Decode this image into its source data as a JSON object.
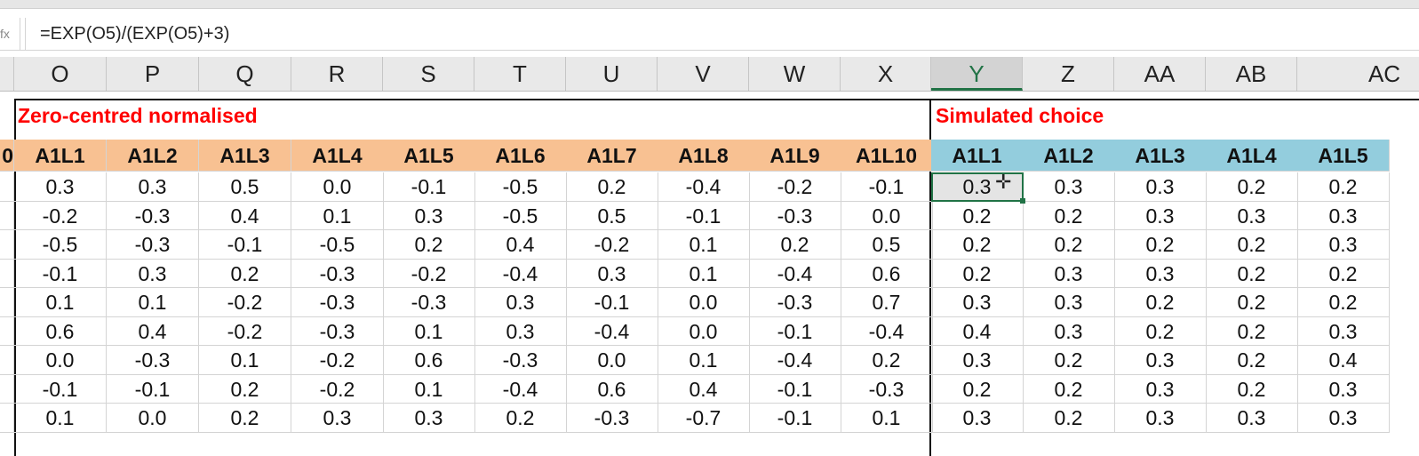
{
  "formula_bar": {
    "name_box_fragment": "fx",
    "formula": "=EXP(O5)/(EXP(O5)+3)"
  },
  "column_headers": [
    "O",
    "P",
    "Q",
    "R",
    "S",
    "T",
    "U",
    "V",
    "W",
    "X",
    "Y",
    "Z",
    "AA",
    "AB",
    "AC"
  ],
  "selected_column": "Y",
  "sections": {
    "normalised_title": "Zero-centred normalised",
    "choice_title": "Simulated choice"
  },
  "row_header_partial": "0",
  "normalised_headers": [
    "A1L1",
    "A1L2",
    "A1L3",
    "A1L4",
    "A1L5",
    "A1L6",
    "A1L7",
    "A1L8",
    "A1L9",
    "A1L10"
  ],
  "choice_headers": [
    "A1L1",
    "A1L2",
    "A1L3",
    "A1L4",
    "A1L5"
  ],
  "rows": [
    {
      "n": [
        "0.3",
        "0.3",
        "0.5",
        "0.0",
        "-0.1",
        "-0.5",
        "0.2",
        "-0.4",
        "-0.2",
        "-0.1"
      ],
      "c": [
        "0.3",
        "0.3",
        "0.3",
        "0.2",
        "0.2"
      ]
    },
    {
      "n": [
        "-0.2",
        "-0.3",
        "0.4",
        "0.1",
        "0.3",
        "-0.5",
        "0.5",
        "-0.1",
        "-0.3",
        "0.0"
      ],
      "c": [
        "0.2",
        "0.2",
        "0.3",
        "0.3",
        "0.3"
      ]
    },
    {
      "n": [
        "-0.5",
        "-0.3",
        "-0.1",
        "-0.5",
        "0.2",
        "0.4",
        "-0.2",
        "0.1",
        "0.2",
        "0.5"
      ],
      "c": [
        "0.2",
        "0.2",
        "0.2",
        "0.2",
        "0.3"
      ]
    },
    {
      "n": [
        "-0.1",
        "0.3",
        "0.2",
        "-0.3",
        "-0.2",
        "-0.4",
        "0.3",
        "0.1",
        "-0.4",
        "0.6"
      ],
      "c": [
        "0.2",
        "0.3",
        "0.3",
        "0.2",
        "0.2"
      ]
    },
    {
      "n": [
        "0.1",
        "0.1",
        "-0.2",
        "-0.3",
        "-0.3",
        "0.3",
        "-0.1",
        "0.0",
        "-0.3",
        "0.7"
      ],
      "c": [
        "0.3",
        "0.3",
        "0.2",
        "0.2",
        "0.2"
      ]
    },
    {
      "n": [
        "0.6",
        "0.4",
        "-0.2",
        "-0.3",
        "0.1",
        "0.3",
        "-0.4",
        "0.0",
        "-0.1",
        "-0.4"
      ],
      "c": [
        "0.4",
        "0.3",
        "0.2",
        "0.2",
        "0.3"
      ]
    },
    {
      "n": [
        "0.0",
        "-0.3",
        "0.1",
        "-0.2",
        "0.6",
        "-0.3",
        "0.0",
        "0.1",
        "-0.4",
        "0.2"
      ],
      "c": [
        "0.3",
        "0.2",
        "0.3",
        "0.2",
        "0.4"
      ]
    },
    {
      "n": [
        "-0.1",
        "-0.1",
        "0.2",
        "-0.2",
        "0.1",
        "-0.4",
        "0.6",
        "0.4",
        "-0.1",
        "-0.3"
      ],
      "c": [
        "0.2",
        "0.2",
        "0.3",
        "0.2",
        "0.3"
      ]
    },
    {
      "n": [
        "0.1",
        "0.0",
        "0.2",
        "0.3",
        "0.3",
        "0.2",
        "-0.3",
        "-0.7",
        "-0.1",
        "0.1"
      ],
      "c": [
        "0.3",
        "0.2",
        "0.3",
        "0.3",
        "0.3"
      ]
    }
  ],
  "colors": {
    "header_orange": "#f8c192",
    "header_blue": "#93cddd",
    "title_red": "#ff0000",
    "excel_green": "#217346"
  }
}
